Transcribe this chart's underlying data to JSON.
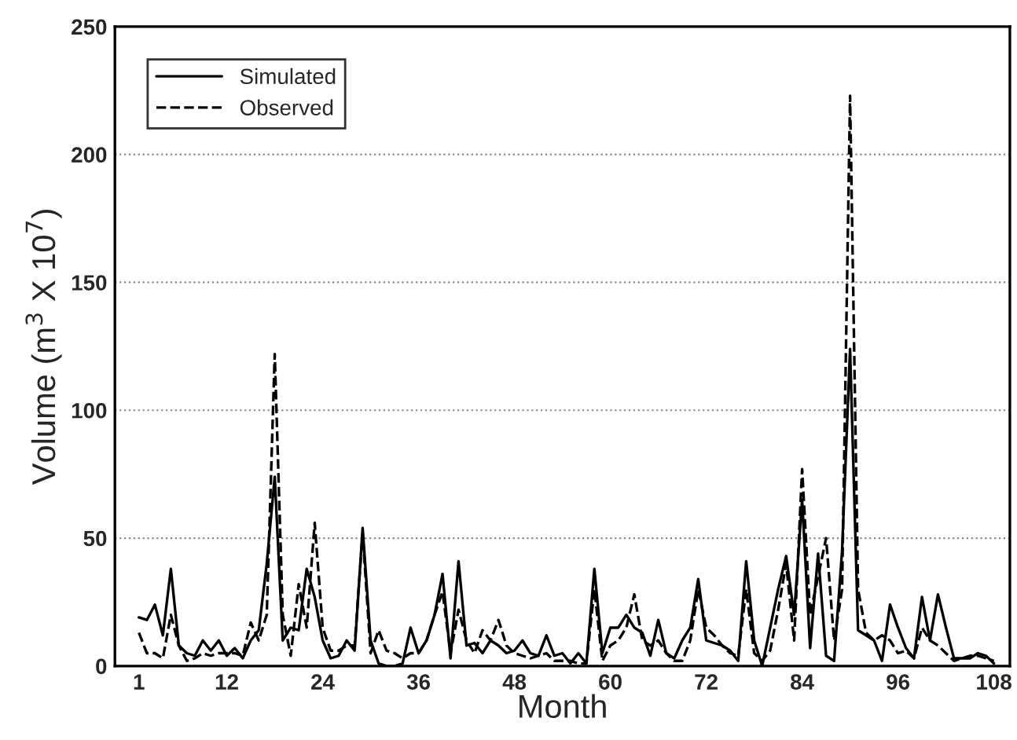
{
  "chart_data": {
    "type": "line",
    "xlabel": "Month",
    "ylabel": "Volume (m$^{3}$ X 10$^{7}$)",
    "x": [
      1,
      2,
      3,
      4,
      5,
      6,
      7,
      8,
      9,
      10,
      11,
      12,
      13,
      14,
      15,
      16,
      17,
      18,
      19,
      20,
      21,
      22,
      23,
      24,
      25,
      26,
      27,
      28,
      29,
      30,
      31,
      32,
      33,
      34,
      35,
      36,
      37,
      38,
      39,
      40,
      41,
      42,
      43,
      44,
      45,
      46,
      47,
      48,
      49,
      50,
      51,
      52,
      53,
      54,
      55,
      56,
      57,
      58,
      59,
      60,
      61,
      62,
      63,
      64,
      65,
      66,
      67,
      68,
      69,
      70,
      71,
      72,
      73,
      74,
      75,
      76,
      77,
      78,
      79,
      80,
      81,
      82,
      83,
      84,
      85,
      86,
      87,
      88,
      89,
      90,
      91,
      92,
      93,
      94,
      95,
      96,
      97,
      98,
      99,
      100,
      101,
      102,
      103,
      104,
      105,
      106,
      107,
      108
    ],
    "series": [
      {
        "name": "Simulated",
        "color": "#000000",
        "line_style": "solid",
        "values": [
          19,
          18,
          24,
          12,
          38,
          8,
          5,
          4,
          10,
          6,
          10,
          4,
          7,
          3,
          10,
          14,
          40,
          74,
          10,
          15,
          14,
          38,
          27,
          10,
          3,
          4,
          10,
          6,
          54,
          10,
          1,
          0,
          0,
          1,
          15,
          5,
          10,
          20,
          36,
          3,
          41,
          8,
          9,
          5,
          10,
          8,
          5,
          6,
          10,
          5,
          4,
          12,
          4,
          5,
          1,
          5,
          1,
          38,
          5,
          15,
          15,
          20,
          15,
          13,
          4,
          18,
          5,
          3,
          10,
          15,
          34,
          10,
          9,
          8,
          6,
          2,
          41,
          10,
          0,
          15,
          30,
          43,
          20,
          65,
          7,
          44,
          4,
          2,
          45,
          124,
          14,
          12,
          10,
          2,
          24,
          15,
          7,
          3,
          27,
          10,
          28,
          15,
          3,
          3,
          3,
          5,
          4,
          1
        ]
      },
      {
        "name": "Observed",
        "color": "#000000",
        "line_style": "dashed",
        "values": [
          13,
          5,
          5,
          3,
          20,
          8,
          2,
          3,
          5,
          4,
          5,
          5,
          5,
          4,
          17,
          10,
          20,
          122,
          20,
          4,
          32,
          15,
          56,
          15,
          6,
          6,
          8,
          8,
          52,
          5,
          14,
          6,
          5,
          3,
          5,
          5,
          10,
          20,
          29,
          5,
          22,
          10,
          5,
          14,
          10,
          18,
          8,
          5,
          4,
          3,
          4,
          5,
          2,
          2,
          2,
          1,
          1,
          30,
          2,
          8,
          10,
          15,
          28,
          10,
          8,
          10,
          5,
          2,
          2,
          10,
          30,
          15,
          12,
          8,
          5,
          4,
          30,
          5,
          2,
          6,
          22,
          40,
          10,
          77,
          20,
          35,
          50,
          10,
          30,
          223,
          30,
          13,
          10,
          12,
          10,
          5,
          6,
          3,
          15,
          10,
          8,
          5,
          2,
          3,
          4,
          4,
          3,
          2
        ]
      }
    ],
    "xlim": [
      -2,
      110
    ],
    "xticks": [
      1,
      12,
      24,
      36,
      48,
      60,
      72,
      84,
      96,
      108
    ],
    "ylim": [
      0,
      250
    ],
    "yticks": [
      0,
      50,
      100,
      150,
      200,
      250
    ],
    "grid": "y",
    "legend": "top left",
    "marker": "none"
  }
}
